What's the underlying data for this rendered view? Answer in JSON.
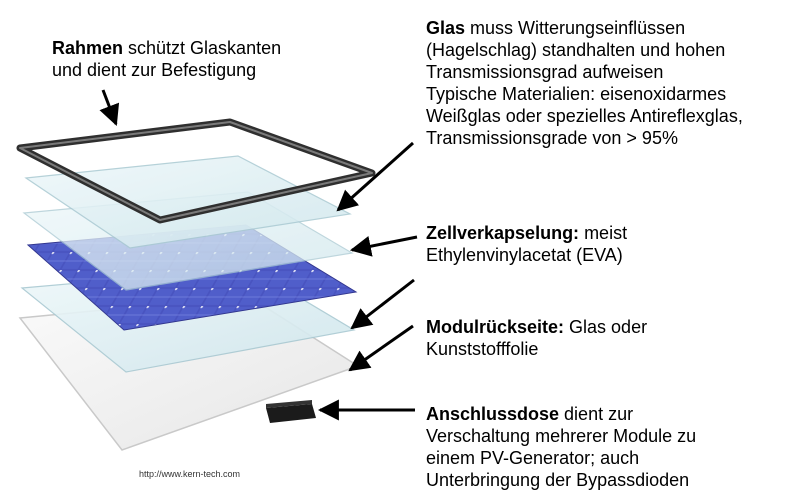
{
  "labels": {
    "rahmen": {
      "title": "Rahmen",
      "lines": [
        " schützt Glaskanten",
        "und dient zur Befestigung"
      ]
    },
    "glas": {
      "title": "Glas",
      "lines": [
        " muss Witterungseinflüssen",
        "(Hagelschlag) standhalten und hohen",
        "Transmissionsgrad aufweisen",
        "Typische Materialien: eisenoxidarmes",
        "Weißglas oder spezielles Antireflexglas,",
        "Transmissionsgrade von > 95%"
      ]
    },
    "zell": {
      "title": "Zellverkapselung:",
      "lines": [
        " meist",
        "Ethylenvinylacetat (EVA)"
      ]
    },
    "modul": {
      "title": "Modulrückseite:",
      "lines": [
        " Glas oder",
        "Kunststofffolie"
      ]
    },
    "anschluss": {
      "title": "Anschlussdose",
      "lines": [
        " dient zur",
        "Verschaltung mehrerer Module zu",
        "einem PV-Generator; auch",
        "Unterbringung der Bypassdioden"
      ]
    }
  },
  "credit": "http://www.kern-tech.com",
  "colors": {
    "frame": "#3a3a3a",
    "glass": "#dbeef2",
    "glass_edge": "#a9c9d2",
    "cell": "#3c46b8",
    "cell_dark": "#2a2f8c",
    "back": "#f2f2f2",
    "arrow": "#000000"
  },
  "icons": [
    "arrow-icon",
    "junction-box-icon"
  ]
}
